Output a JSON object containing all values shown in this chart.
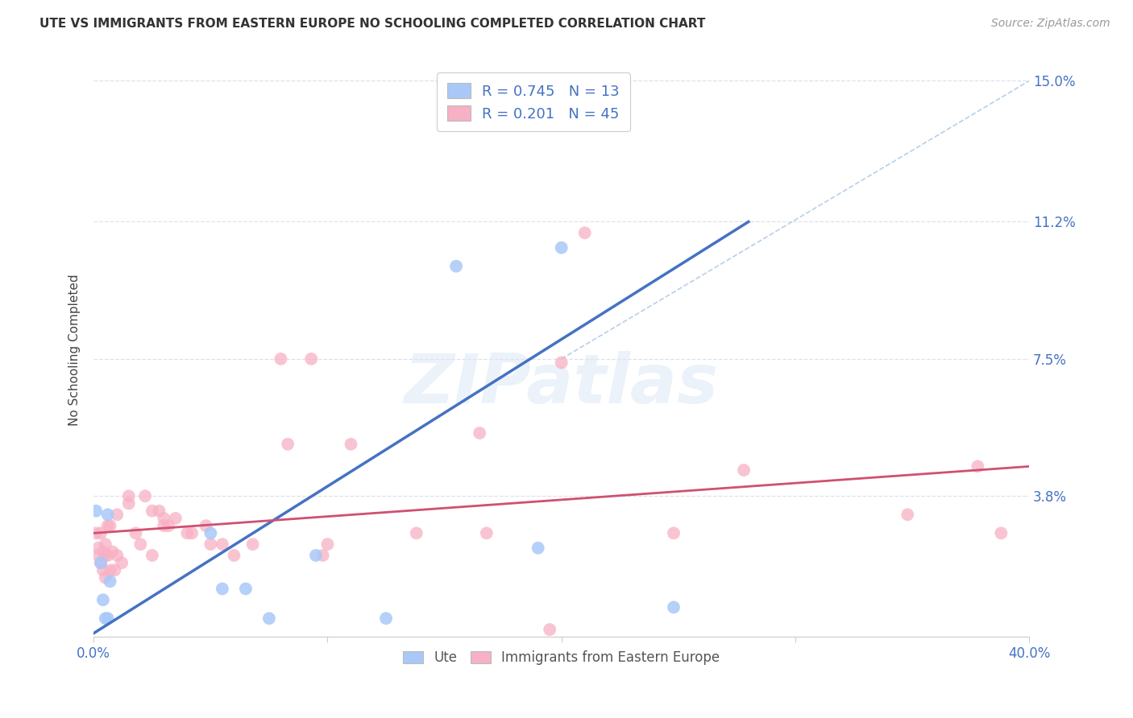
{
  "title": "UTE VS IMMIGRANTS FROM EASTERN EUROPE NO SCHOOLING COMPLETED CORRELATION CHART",
  "source": "Source: ZipAtlas.com",
  "ylabel": "No Schooling Completed",
  "yticks": [
    0.0,
    0.038,
    0.075,
    0.112,
    0.15
  ],
  "ytick_labels": [
    "",
    "3.8%",
    "7.5%",
    "11.2%",
    "15.0%"
  ],
  "xticks": [
    0.0,
    0.1,
    0.2,
    0.3,
    0.4
  ],
  "xtick_labels": [
    "0.0%",
    "",
    "",
    "",
    "40.0%"
  ],
  "xlim": [
    0.0,
    0.4
  ],
  "ylim": [
    0.0,
    0.155
  ],
  "color_ute": "#a8c8f8",
  "color_immigrants": "#f8b0c4",
  "line_color_ute": "#4472c4",
  "line_color_immigrants": "#d05070",
  "line_color_diagonal": "#b8cfe8",
  "watermark": "ZIPatlas",
  "ute_line": [
    [
      0.0,
      0.001
    ],
    [
      0.28,
      0.112
    ]
  ],
  "imm_line": [
    [
      0.0,
      0.028
    ],
    [
      0.4,
      0.046
    ]
  ],
  "diag_line": [
    [
      0.2,
      0.075
    ],
    [
      0.4,
      0.15
    ]
  ],
  "ute_points": [
    [
      0.001,
      0.034
    ],
    [
      0.003,
      0.02
    ],
    [
      0.004,
      0.01
    ],
    [
      0.005,
      0.005
    ],
    [
      0.006,
      0.005
    ],
    [
      0.006,
      0.033
    ],
    [
      0.007,
      0.015
    ],
    [
      0.05,
      0.028
    ],
    [
      0.055,
      0.013
    ],
    [
      0.065,
      0.013
    ],
    [
      0.075,
      0.005
    ],
    [
      0.095,
      0.022
    ],
    [
      0.125,
      0.005
    ],
    [
      0.155,
      0.1
    ],
    [
      0.19,
      0.024
    ],
    [
      0.248,
      0.008
    ],
    [
      0.2,
      0.105
    ]
  ],
  "immigrant_points": [
    [
      0.001,
      0.028
    ],
    [
      0.002,
      0.024
    ],
    [
      0.002,
      0.022
    ],
    [
      0.003,
      0.028
    ],
    [
      0.003,
      0.02
    ],
    [
      0.004,
      0.023
    ],
    [
      0.004,
      0.018
    ],
    [
      0.005,
      0.025
    ],
    [
      0.005,
      0.022
    ],
    [
      0.005,
      0.016
    ],
    [
      0.006,
      0.03
    ],
    [
      0.006,
      0.022
    ],
    [
      0.007,
      0.03
    ],
    [
      0.007,
      0.018
    ],
    [
      0.008,
      0.023
    ],
    [
      0.009,
      0.018
    ],
    [
      0.01,
      0.022
    ],
    [
      0.01,
      0.033
    ],
    [
      0.012,
      0.02
    ],
    [
      0.015,
      0.038
    ],
    [
      0.015,
      0.036
    ],
    [
      0.018,
      0.028
    ],
    [
      0.02,
      0.025
    ],
    [
      0.022,
      0.038
    ],
    [
      0.025,
      0.034
    ],
    [
      0.025,
      0.022
    ],
    [
      0.028,
      0.034
    ],
    [
      0.03,
      0.032
    ],
    [
      0.03,
      0.03
    ],
    [
      0.032,
      0.03
    ],
    [
      0.035,
      0.032
    ],
    [
      0.04,
      0.028
    ],
    [
      0.042,
      0.028
    ],
    [
      0.048,
      0.03
    ],
    [
      0.05,
      0.025
    ],
    [
      0.055,
      0.025
    ],
    [
      0.06,
      0.022
    ],
    [
      0.068,
      0.025
    ],
    [
      0.08,
      0.075
    ],
    [
      0.083,
      0.052
    ],
    [
      0.093,
      0.075
    ],
    [
      0.098,
      0.022
    ],
    [
      0.1,
      0.025
    ],
    [
      0.11,
      0.052
    ],
    [
      0.138,
      0.028
    ],
    [
      0.168,
      0.028
    ],
    [
      0.2,
      0.074
    ],
    [
      0.248,
      0.028
    ],
    [
      0.278,
      0.045
    ],
    [
      0.348,
      0.033
    ],
    [
      0.378,
      0.046
    ],
    [
      0.388,
      0.028
    ],
    [
      0.21,
      0.109
    ],
    [
      0.165,
      0.055
    ],
    [
      0.195,
      0.002
    ]
  ],
  "background_color": "#ffffff",
  "grid_color": "#dde0ee"
}
